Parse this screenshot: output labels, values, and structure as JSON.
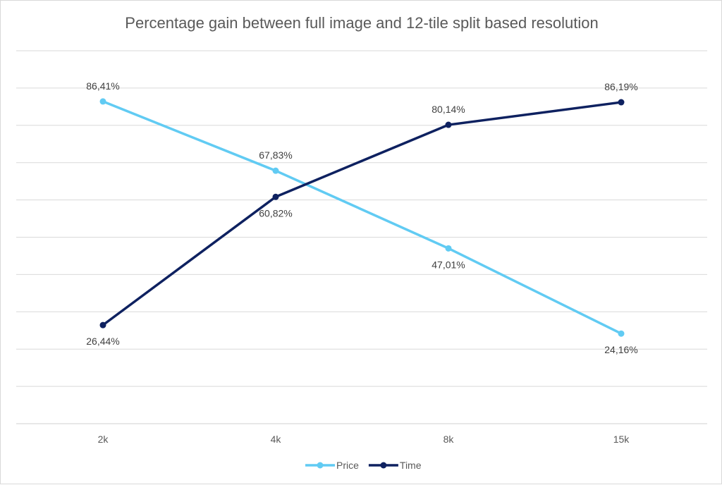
{
  "chart_data": {
    "type": "line",
    "title": "Percentage gain between full image and 12-tile split based resolution",
    "categories": [
      "2k",
      "4k",
      "8k",
      "15k"
    ],
    "series": [
      {
        "name": "Price",
        "values": [
          86.41,
          67.83,
          47.01,
          24.16
        ],
        "labels": [
          "86,41%",
          "67,83%",
          "47,01%",
          "24,16%"
        ],
        "color": "#61CBF3"
      },
      {
        "name": "Time",
        "values": [
          26.44,
          60.82,
          80.14,
          86.19
        ],
        "labels": [
          "26,44%",
          "60,82%",
          "80,14%",
          "86,19%"
        ],
        "color": "#0E2160"
      }
    ],
    "ylim": [
      0,
      100
    ],
    "y_gridlines": 10,
    "y_tick_labels_visible": false,
    "grid": true,
    "legend_position": "bottom"
  }
}
